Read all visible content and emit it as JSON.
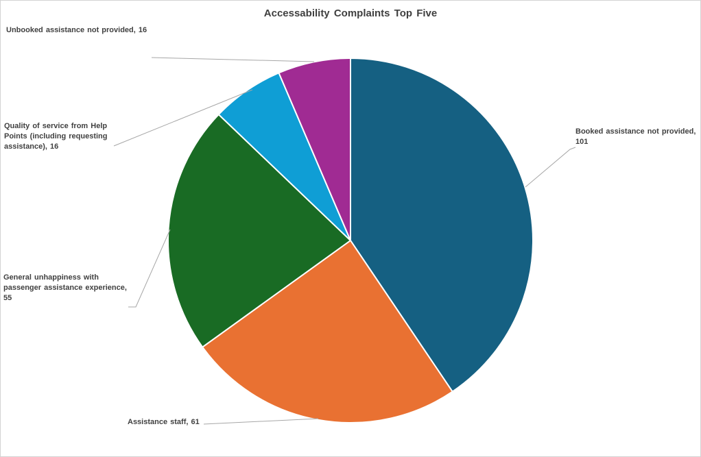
{
  "chart_data": {
    "type": "pie",
    "title": "Accessability Complaints Top Five",
    "categories": [
      "Booked assistance not provided",
      "Assistance staff",
      "General unhappiness with passenger assistance experience",
      "Quality of service from Help Points (including requesting assistance)",
      "Unbooked assistance not provided"
    ],
    "values": [
      101,
      61,
      55,
      16,
      16
    ],
    "total": 249,
    "colors": [
      "#156082",
      "#E97132",
      "#196B24",
      "#0F9ED5",
      "#A02B93"
    ],
    "start_angle_deg": 0,
    "direction": "clockwise",
    "legend": "none",
    "slice_border_color": "#FFFFFF",
    "leader_line_color": "#A6A6A6",
    "title_color": "#3F3F3F",
    "label_color": "#404040",
    "data_labels": [
      {
        "category": "Booked assistance not provided",
        "value": 101,
        "text": "Booked assistance not provided,\n101"
      },
      {
        "category": "Assistance staff",
        "value": 61,
        "text": "Assistance staff, 61"
      },
      {
        "category": "General unhappiness with passenger assistance experience",
        "value": 55,
        "text": "General unhappiness with\npassenger assistance experience,\n55"
      },
      {
        "category": "Quality of service from Help Points (including requesting assistance)",
        "value": 16,
        "text": "Quality of service from Help\nPoints (including requesting\nassistance), 16"
      },
      {
        "category": "Unbooked assistance not provided",
        "value": 16,
        "text": "Unbooked assistance not provided, 16"
      }
    ]
  }
}
